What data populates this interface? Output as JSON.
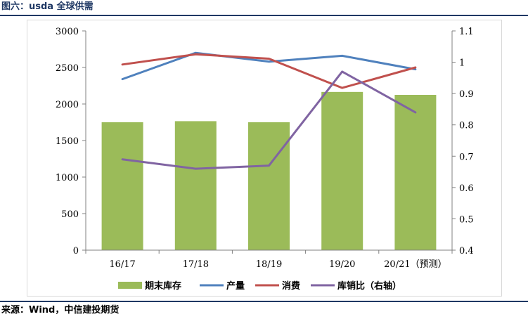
{
  "figure": {
    "title": "图六：usda 全球供需",
    "source": "来源：Wind，中信建投期货"
  },
  "chart_data": {
    "type": "bar",
    "categories": [
      "16/17",
      "17/18",
      "18/19",
      "19/20",
      "20/21（预测）"
    ],
    "series": [
      {
        "name": "期末库存",
        "type": "bar",
        "axis": "left",
        "color": "#9bbb59",
        "values": [
          1750,
          1765,
          1750,
          2165,
          2125
        ]
      },
      {
        "name": "产量",
        "type": "line",
        "axis": "left",
        "color": "#4f81bd",
        "values": [
          2340,
          2700,
          2580,
          2660,
          2475
        ]
      },
      {
        "name": "消费",
        "type": "line",
        "axis": "left",
        "color": "#c0504d",
        "values": [
          2540,
          2680,
          2620,
          2220,
          2500
        ]
      },
      {
        "name": "库销比（右轴）",
        "type": "line",
        "axis": "right",
        "color": "#8064a2",
        "values": [
          0.69,
          0.66,
          0.67,
          0.97,
          0.84
        ]
      }
    ],
    "left_axis": {
      "min": 0,
      "max": 3000,
      "ticks": [
        "0",
        "500",
        "1000",
        "1500",
        "2000",
        "2500",
        "3000"
      ]
    },
    "right_axis": {
      "min": 0.4,
      "max": 1.1,
      "ticks": [
        "0.4",
        "0.5",
        "0.6",
        "0.7",
        "0.8",
        "0.9",
        "1",
        "1.1"
      ]
    },
    "grid": false,
    "legend": "bottom"
  }
}
